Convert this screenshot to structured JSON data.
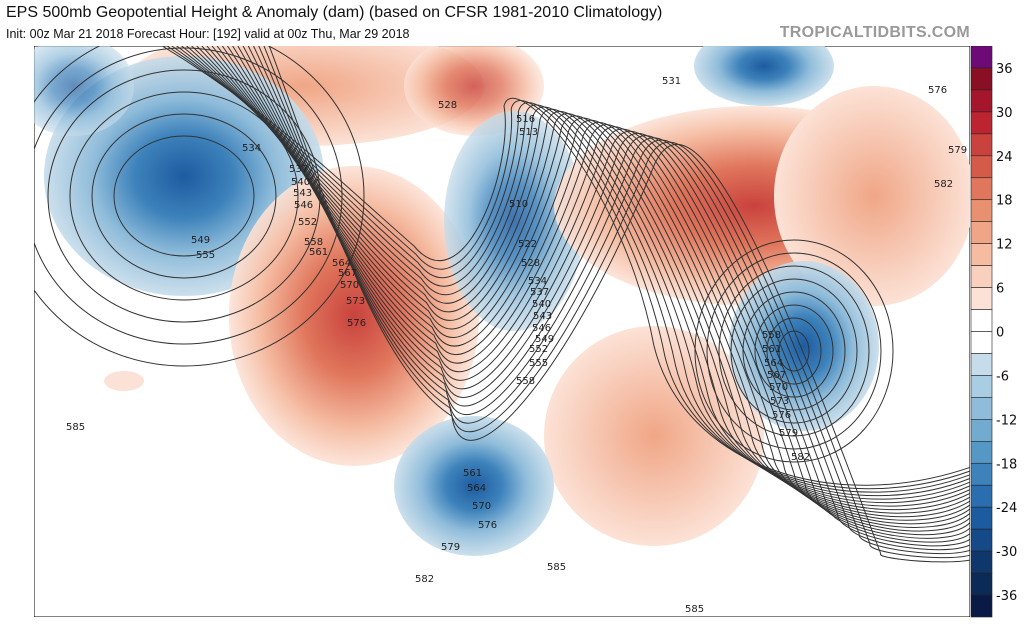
{
  "header": {
    "title": "EPS 500mb Geopotential Height & Anomaly (dam) (based on CFSR 1981-2010 Climatology)",
    "subtitle": "Init: 00z Mar 21 2018   Forecast Hour: [192]   valid at 00z Thu, Mar 29 2018",
    "brand": "TROPICALTIDBITS.COM"
  },
  "colorbar": {
    "ticks": [
      "36",
      "30",
      "24",
      "18",
      "12",
      "6",
      "0",
      "-6",
      "-12",
      "-18",
      "-24",
      "-30",
      "-36"
    ],
    "colors": [
      "#6e0a78",
      "#8a0f24",
      "#a5162c",
      "#bb2430",
      "#c9423d",
      "#d45b4a",
      "#e0765c",
      "#e99070",
      "#f0a686",
      "#f5bca2",
      "#f9d0bd",
      "#fce2d6",
      "#ffffff",
      "#ffffff",
      "#c6dcea",
      "#a9cde3",
      "#8fbcda",
      "#73aad0",
      "#5597c5",
      "#3d82bb",
      "#2a6eb0",
      "#1d5ba0",
      "#154987",
      "#0f376c",
      "#0b2a56",
      "#081a45"
    ]
  },
  "contour_labels": [
    "534",
    "537",
    "540",
    "543",
    "546",
    "552",
    "558",
    "561",
    "564",
    "567",
    "570",
    "573",
    "576",
    "549",
    "555",
    "528",
    "516",
    "513",
    "510",
    "522",
    "528",
    "534",
    "537",
    "540",
    "543",
    "546",
    "549",
    "552",
    "555",
    "558",
    "561",
    "564",
    "570",
    "576",
    "579",
    "582",
    "585",
    "585",
    "585",
    "531",
    "576",
    "579",
    "582",
    "558",
    "561",
    "564",
    "567",
    "570",
    "573",
    "576",
    "579",
    "582"
  ]
}
